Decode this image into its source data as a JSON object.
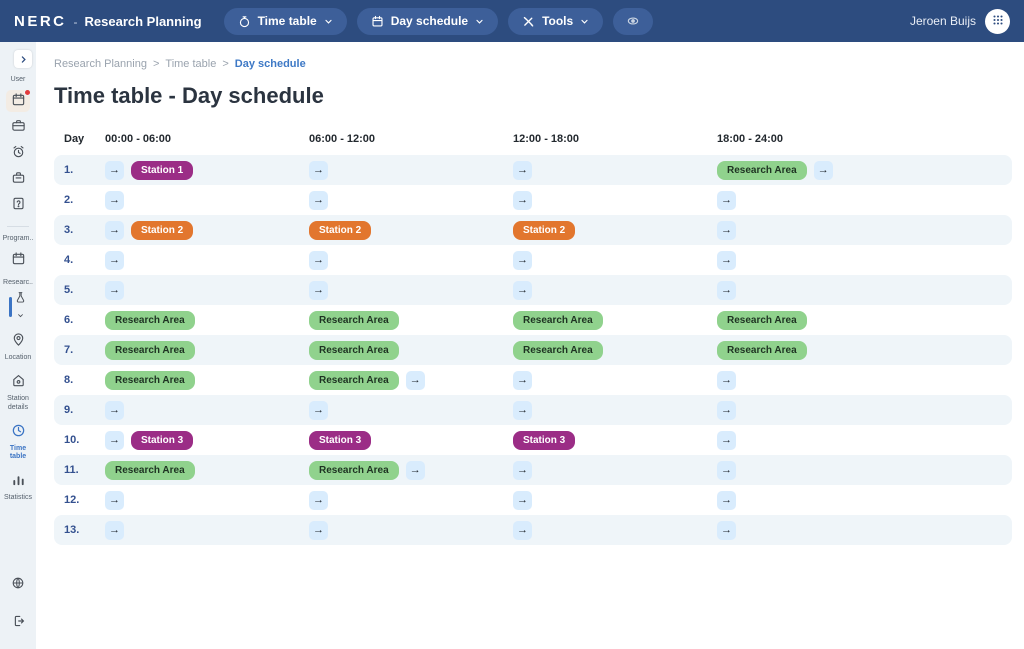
{
  "navbar": {
    "brand": "NERC",
    "separator": "-",
    "app_title": "Research Planning",
    "menu_time_table": "Time table",
    "menu_day_schedule": "Day schedule",
    "menu_tools": "Tools",
    "user_name": "Jeroen Buijs"
  },
  "sidebar": {
    "group_user": "User",
    "group_program": "Program..",
    "group_research": "Researc..",
    "item_location": "Location",
    "item_station_details": "Station details",
    "item_time_table": "Time table",
    "item_statistics": "Statistics"
  },
  "breadcrumb": {
    "item1": "Research Planning",
    "item2": "Time table",
    "item3": "Day schedule",
    "separator": ">"
  },
  "page": {
    "title": "Time table - Day schedule"
  },
  "table": {
    "columns": [
      "Day",
      "00:00 - 06:00",
      "06:00 - 12:00",
      "12:00 - 18:00",
      "18:00 - 24:00"
    ],
    "arrow_glyph": "→",
    "rows": [
      {
        "day": "1.",
        "cells": [
          [
            {
              "type": "arrow"
            },
            {
              "type": "badge",
              "label": "Station 1",
              "color": "purple"
            }
          ],
          [
            {
              "type": "arrow"
            }
          ],
          [
            {
              "type": "arrow"
            }
          ],
          [
            {
              "type": "badge",
              "label": "Research Area",
              "color": "green"
            },
            {
              "type": "arrow"
            }
          ]
        ]
      },
      {
        "day": "2.",
        "cells": [
          [
            {
              "type": "arrow"
            }
          ],
          [
            {
              "type": "arrow"
            }
          ],
          [
            {
              "type": "arrow"
            }
          ],
          [
            {
              "type": "arrow"
            }
          ]
        ]
      },
      {
        "day": "3.",
        "cells": [
          [
            {
              "type": "arrow"
            },
            {
              "type": "badge",
              "label": "Station 2",
              "color": "orange"
            }
          ],
          [
            {
              "type": "badge",
              "label": "Station 2",
              "color": "orange"
            }
          ],
          [
            {
              "type": "badge",
              "label": "Station 2",
              "color": "orange"
            }
          ],
          [
            {
              "type": "arrow"
            }
          ]
        ]
      },
      {
        "day": "4.",
        "cells": [
          [
            {
              "type": "arrow"
            }
          ],
          [
            {
              "type": "arrow"
            }
          ],
          [
            {
              "type": "arrow"
            }
          ],
          [
            {
              "type": "arrow"
            }
          ]
        ]
      },
      {
        "day": "5.",
        "cells": [
          [
            {
              "type": "arrow"
            }
          ],
          [
            {
              "type": "arrow"
            }
          ],
          [
            {
              "type": "arrow"
            }
          ],
          [
            {
              "type": "arrow"
            }
          ]
        ]
      },
      {
        "day": "6.",
        "cells": [
          [
            {
              "type": "badge",
              "label": "Research Area",
              "color": "green"
            }
          ],
          [
            {
              "type": "badge",
              "label": "Research Area",
              "color": "green"
            }
          ],
          [
            {
              "type": "badge",
              "label": "Research Area",
              "color": "green"
            }
          ],
          [
            {
              "type": "badge",
              "label": "Research Area",
              "color": "green"
            }
          ]
        ]
      },
      {
        "day": "7.",
        "cells": [
          [
            {
              "type": "badge",
              "label": "Research Area",
              "color": "green"
            }
          ],
          [
            {
              "type": "badge",
              "label": "Research Area",
              "color": "green"
            }
          ],
          [
            {
              "type": "badge",
              "label": "Research Area",
              "color": "green"
            }
          ],
          [
            {
              "type": "badge",
              "label": "Research Area",
              "color": "green"
            }
          ]
        ]
      },
      {
        "day": "8.",
        "cells": [
          [
            {
              "type": "badge",
              "label": "Research Area",
              "color": "green"
            }
          ],
          [
            {
              "type": "badge",
              "label": "Research Area",
              "color": "green"
            },
            {
              "type": "arrow"
            }
          ],
          [
            {
              "type": "arrow"
            }
          ],
          [
            {
              "type": "arrow"
            }
          ]
        ]
      },
      {
        "day": "9.",
        "cells": [
          [
            {
              "type": "arrow"
            }
          ],
          [
            {
              "type": "arrow"
            }
          ],
          [
            {
              "type": "arrow"
            }
          ],
          [
            {
              "type": "arrow"
            }
          ]
        ]
      },
      {
        "day": "10.",
        "cells": [
          [
            {
              "type": "arrow"
            },
            {
              "type": "badge",
              "label": "Station 3",
              "color": "purple"
            }
          ],
          [
            {
              "type": "badge",
              "label": "Station 3",
              "color": "purple"
            }
          ],
          [
            {
              "type": "badge",
              "label": "Station 3",
              "color": "purple"
            }
          ],
          [
            {
              "type": "arrow"
            }
          ]
        ]
      },
      {
        "day": "11.",
        "cells": [
          [
            {
              "type": "badge",
              "label": "Research Area",
              "color": "green"
            }
          ],
          [
            {
              "type": "badge",
              "label": "Research Area",
              "color": "green"
            },
            {
              "type": "arrow"
            }
          ],
          [
            {
              "type": "arrow"
            }
          ],
          [
            {
              "type": "arrow"
            }
          ]
        ]
      },
      {
        "day": "12.",
        "cells": [
          [
            {
              "type": "arrow"
            }
          ],
          [
            {
              "type": "arrow"
            }
          ],
          [
            {
              "type": "arrow"
            }
          ],
          [
            {
              "type": "arrow"
            }
          ]
        ]
      },
      {
        "day": "13.",
        "cells": [
          [
            {
              "type": "arrow"
            }
          ],
          [
            {
              "type": "arrow"
            }
          ],
          [
            {
              "type": "arrow"
            }
          ],
          [
            {
              "type": "arrow"
            }
          ]
        ]
      }
    ]
  },
  "colors": {
    "navbar_bg": "#2d4c7f",
    "pill_bg": "#3d5f99",
    "accent_blue": "#3e79c6",
    "stripe_bg": "#eff5f9",
    "arrow_btn_bg": "#d9ecfd",
    "badges": {
      "purple": {
        "bg": "#9b2d86",
        "fg": "#ffffff"
      },
      "orange": {
        "bg": "#e2762e",
        "fg": "#ffffff"
      },
      "green": {
        "bg": "#90d28d",
        "fg": "#1e3322"
      }
    }
  }
}
